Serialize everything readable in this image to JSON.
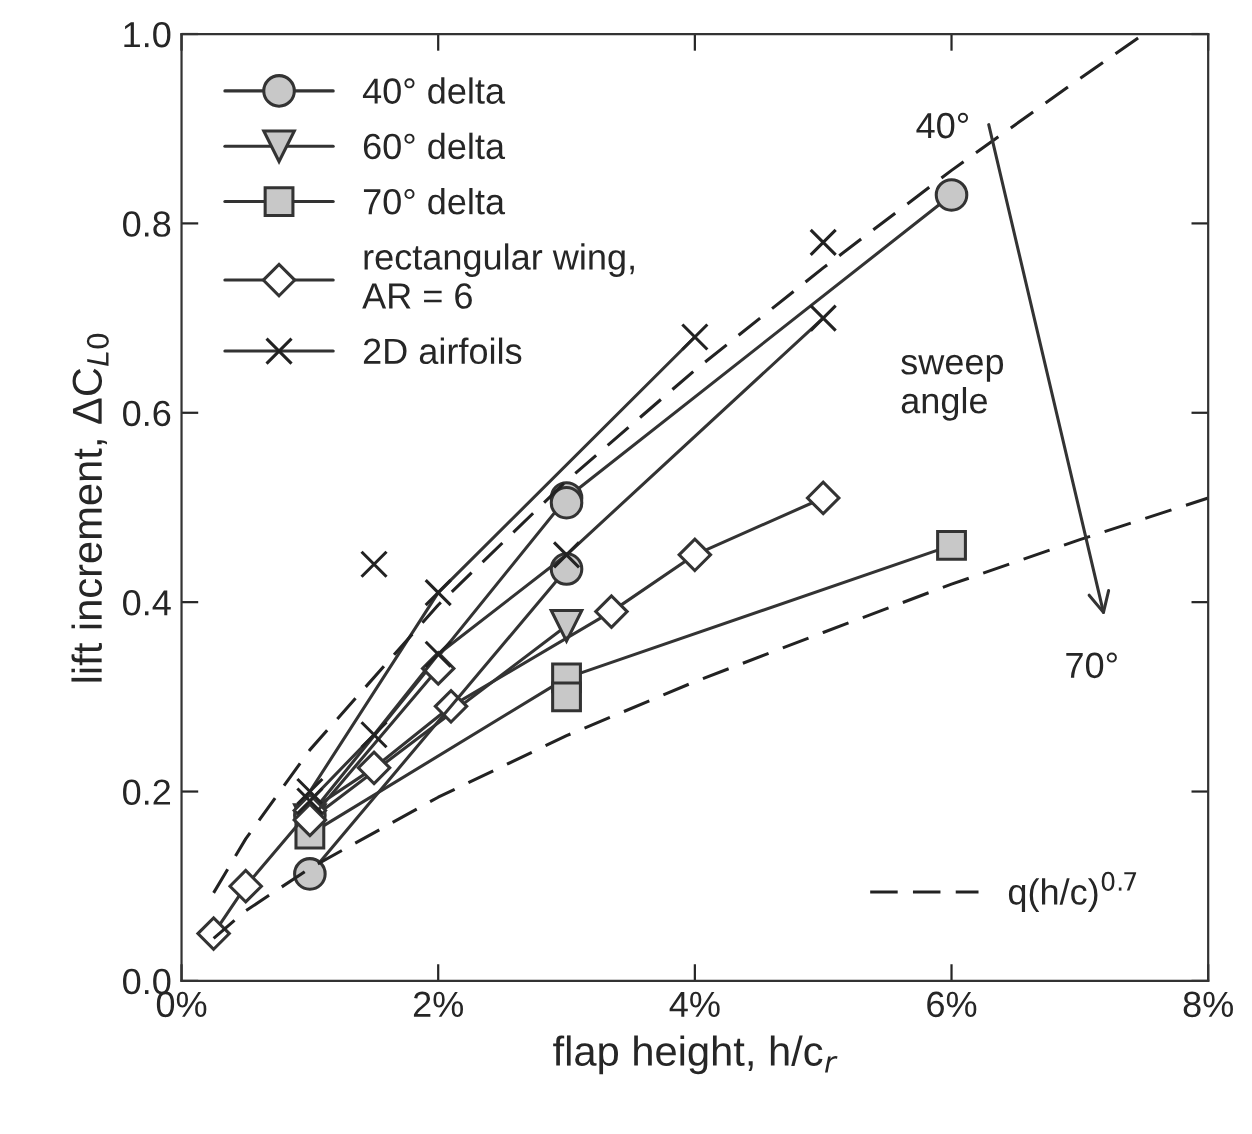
{
  "chart_data": {
    "type": "line",
    "xlabel": "flap height, h/c$_{r}$",
    "ylabel": "lift increment, ΔC$_{L0}$",
    "xlim": [
      0,
      8
    ],
    "ylim": [
      0,
      1
    ],
    "xticks": [
      {
        "value": 0,
        "label": "0%"
      },
      {
        "value": 2,
        "label": "2%"
      },
      {
        "value": 4,
        "label": "4%"
      },
      {
        "value": 6,
        "label": "6%"
      },
      {
        "value": 8,
        "label": "8%"
      }
    ],
    "yticks": [
      {
        "value": 0,
        "label": "0.0"
      },
      {
        "value": 0.2,
        "label": "0.2"
      },
      {
        "value": 0.4,
        "label": "0.4"
      },
      {
        "value": 0.6,
        "label": "0.6"
      },
      {
        "value": 0.8,
        "label": "0.8"
      },
      {
        "value": 1,
        "label": "1.0"
      }
    ],
    "grid": false,
    "legend": "top left",
    "series": [
      {
        "name": "40° delta",
        "color": "#c8c8c8",
        "marker": "circle",
        "x": [
          1,
          3,
          6
        ],
        "values": [
          0.175,
          0.51,
          0.83
        ]
      },
      {
        "name": "60° delta",
        "color": "#c8c8c8",
        "marker": "triangle",
        "x": [
          1,
          3
        ],
        "values": [
          0.17,
          0.375
        ]
      },
      {
        "name": "70° delta",
        "color": "#c8c8c8",
        "marker": "square",
        "x": [
          1,
          3,
          6
        ],
        "values": [
          0.155,
          0.32,
          0.46
        ]
      },
      {
        "name": "rectangular wing,\nAR = 6",
        "color": "#ffffff",
        "marker": "diamond",
        "x": [
          0.25,
          0.5,
          1,
          1.5,
          2.1,
          3.35,
          4,
          5
        ],
        "values": [
          0.05,
          0.1,
          0.18,
          0.225,
          0.29,
          0.39,
          0.45,
          0.51
        ]
      },
      {
        "name": "2D airfoils",
        "color": "#222222",
        "marker": "cross",
        "x": [
          1,
          2,
          4
        ],
        "values": [
          0.2,
          0.41,
          0.68
        ]
      },
      {
        "color": "#c8c8c8",
        "marker": "circle",
        "x": [
          1,
          3
        ],
        "values": [
          0.113,
          0.435
        ]
      },
      {
        "color": "#c8c8c8",
        "marker": "circle",
        "x": [
          3
        ],
        "values": [
          0.505
        ]
      },
      {
        "color": "#c8c8c8",
        "marker": "square",
        "x": [
          3
        ],
        "values": [
          0.3
        ]
      },
      {
        "color": "#ffffff",
        "marker": "diamond",
        "x": [
          1,
          2
        ],
        "values": [
          0.17,
          0.33
        ]
      },
      {
        "color": "#222222",
        "marker": "cross",
        "x": [
          1,
          1.5,
          2,
          3,
          5
        ],
        "values": [
          0.19,
          0.26,
          0.345,
          0.45,
          0.7
        ]
      },
      {
        "type": "scatter",
        "color": "#222222",
        "marker": "cross",
        "x": [
          1.5,
          5
        ],
        "values": [
          0.44,
          0.78
        ]
      },
      {
        "name": "q(h/c)$^{0.7}$",
        "color": "#222222",
        "marker": "none",
        "line_style": "dashed",
        "x": [
          0.25,
          0.5,
          1,
          2,
          3,
          4,
          5,
          6,
          7,
          7.5
        ],
        "values": [
          0.093,
          0.15,
          0.244,
          0.397,
          0.528,
          0.645,
          0.753,
          0.856,
          0.953,
          1.0
        ]
      },
      {
        "color": "#222222",
        "marker": "none",
        "line_style": "dashed",
        "x": [
          0.25,
          0.5,
          1,
          2,
          3,
          4,
          5,
          6,
          7,
          8
        ],
        "values": [
          0.045,
          0.074,
          0.119,
          0.194,
          0.259,
          0.316,
          0.368,
          0.419,
          0.466,
          0.51
        ]
      }
    ],
    "annotations": [
      "40°",
      "70°",
      "sweep\nangle"
    ]
  }
}
